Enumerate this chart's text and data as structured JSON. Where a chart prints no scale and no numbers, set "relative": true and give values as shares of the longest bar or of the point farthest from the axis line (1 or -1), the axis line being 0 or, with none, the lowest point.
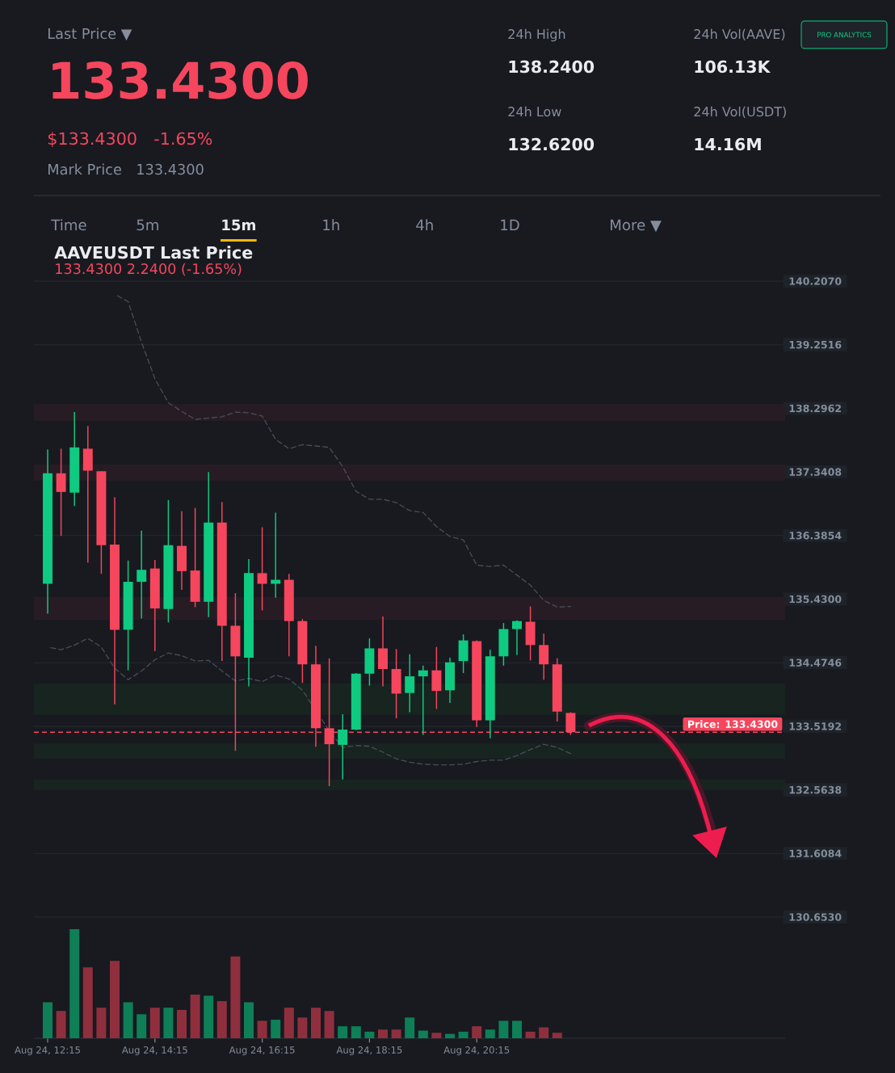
{
  "chart_data": [
    {
      "type": "other",
      "annotations": [
        "Last Price ▼",
        "133.4300",
        "$133.4300",
        "-1.65%",
        "Mark Price",
        "133.4300",
        "24h High",
        "138.2400",
        "24h Low",
        "132.6200",
        "24h Vol(AAVE)",
        "106.13K",
        "24h Vol(USDT)",
        "14.16M",
        "PRO ANALYTICS",
        "Time",
        "5m",
        "15m",
        "1h",
        "4h",
        "1D",
        "More ▼"
      ]
    },
    {
      "type": "candlestick",
      "title": "AAVEUSDT Last Price",
      "subtitle": "133.4300 2.2400 (-1.65%)",
      "categories": [
        null,
        null,
        null,
        null,
        null,
        null,
        null,
        null,
        null,
        null,
        null,
        null,
        null,
        null,
        null,
        null,
        null,
        null,
        null,
        null,
        null,
        null,
        null,
        null,
        null,
        null,
        null,
        null,
        null,
        null,
        null,
        null,
        null,
        null,
        null,
        null,
        null,
        null,
        null,
        null
      ],
      "ohlc": [
        [
          135.66,
          137.68,
          135.21,
          137.32
        ],
        [
          137.32,
          137.69,
          136.38,
          137.04
        ],
        [
          137.03,
          138.24,
          136.83,
          137.71
        ],
        [
          137.69,
          138.03,
          135.98,
          137.36
        ],
        [
          137.35,
          137.35,
          135.81,
          136.24
        ],
        [
          136.25,
          136.96,
          133.85,
          134.97
        ],
        [
          134.97,
          136.01,
          134.36,
          135.69
        ],
        [
          135.69,
          136.46,
          135.14,
          135.87
        ],
        [
          135.89,
          136.02,
          134.65,
          135.29
        ],
        [
          135.28,
          136.92,
          135.08,
          136.24
        ],
        [
          136.23,
          136.75,
          135.57,
          135.85
        ],
        [
          135.86,
          136.8,
          135.31,
          135.39
        ],
        [
          135.39,
          137.34,
          135.16,
          136.58
        ],
        [
          136.58,
          136.89,
          134.5,
          135.03
        ],
        [
          135.03,
          135.52,
          133.15,
          134.57
        ],
        [
          134.55,
          136.03,
          134.12,
          135.82
        ],
        [
          135.82,
          136.51,
          135.26,
          135.66
        ],
        [
          135.66,
          136.73,
          135.45,
          135.72
        ],
        [
          135.72,
          135.81,
          134.57,
          135.1
        ],
        [
          135.1,
          135.13,
          134.17,
          134.45
        ],
        [
          134.45,
          134.73,
          133.21,
          133.49
        ],
        [
          133.49,
          134.54,
          132.62,
          133.25
        ],
        [
          133.24,
          133.7,
          132.72,
          133.47
        ],
        [
          133.47,
          134.32,
          133.46,
          134.31
        ],
        [
          134.31,
          134.84,
          134.13,
          134.69
        ],
        [
          134.69,
          135.17,
          134.12,
          134.38
        ],
        [
          134.38,
          134.68,
          133.64,
          134.01
        ],
        [
          134.02,
          134.6,
          133.73,
          134.27
        ],
        [
          134.27,
          134.43,
          133.39,
          134.36
        ],
        [
          134.36,
          134.71,
          133.78,
          134.05
        ],
        [
          134.06,
          134.55,
          133.87,
          134.48
        ],
        [
          134.5,
          134.9,
          134.32,
          134.81
        ],
        [
          134.8,
          134.81,
          133.51,
          133.61
        ],
        [
          133.61,
          134.67,
          133.34,
          134.57
        ],
        [
          134.57,
          135.07,
          134.43,
          134.98
        ],
        [
          134.98,
          135.11,
          134.59,
          135.1
        ],
        [
          135.09,
          135.32,
          134.51,
          134.74
        ],
        [
          134.74,
          134.91,
          134.22,
          134.45
        ],
        [
          134.45,
          134.54,
          133.59,
          133.74
        ],
        [
          133.72,
          133.73,
          133.39,
          133.43
        ]
      ],
      "colors": [
        "#0ecb81",
        "#f6465d",
        "#0ecb81",
        "#f6465d",
        "#f6465d",
        "#f6465d",
        "#0ecb81",
        "#0ecb81",
        "#f6465d",
        "#0ecb81",
        "#f6465d",
        "#f6465d",
        "#0ecb81",
        "#f6465d",
        "#f6465d",
        "#0ecb81",
        "#f6465d",
        "#0ecb81",
        "#f6465d",
        "#f6465d",
        "#f6465d",
        "#f6465d",
        "#0ecb81",
        "#0ecb81",
        "#0ecb81",
        "#f6465d",
        "#f6465d",
        "#0ecb81",
        "#0ecb81",
        "#f6465d",
        "#0ecb81",
        "#0ecb81",
        "#f6465d",
        "#0ecb81",
        "#0ecb81",
        "#0ecb81",
        "#f6465d",
        "#f6465d",
        "#f6465d",
        "#f6465d"
      ],
      "series": [
        {
          "type": "line",
          "color": "#474d57",
          "line_style": "dashed",
          "values": [
            null,
            null,
            null,
            null,
            null,
            140.01,
            139.9,
            139.29,
            138.74,
            138.38,
            138.25,
            138.13,
            138.15,
            138.17,
            138.24,
            138.23,
            138.18,
            137.83,
            137.69,
            137.75,
            137.73,
            137.71,
            137.42,
            137.05,
            136.93,
            136.93,
            136.88,
            136.76,
            136.73,
            136.52,
            136.37,
            136.32,
            135.94,
            135.92,
            135.94,
            135.79,
            135.64,
            135.41,
            135.31,
            135.32
          ]
        },
        {
          "type": "line",
          "color": "#474d57",
          "line_style": "dashed",
          "values": [
            134.71,
            134.67,
            134.74,
            134.84,
            134.71,
            134.39,
            134.22,
            134.35,
            134.52,
            134.62,
            134.58,
            134.5,
            134.51,
            134.35,
            134.2,
            134.24,
            134.19,
            134.29,
            134.23,
            134.06,
            null,
            133.45,
            133.2,
            133.23,
            133.22,
            133.13,
            133.03,
            132.98,
            132.95,
            132.94,
            132.94,
            132.95,
            132.99,
            133.01,
            133.01,
            133.08,
            133.17,
            133.25,
            133.2,
            133.11
          ]
        }
      ],
      "ylim": [
        130.653,
        140.207
      ],
      "yticks": [
        {
          "value": 140.207,
          "label": "140.2070"
        },
        {
          "value": 139.2516,
          "label": "139.2516"
        },
        {
          "value": 138.2962,
          "label": "138.2962"
        },
        {
          "value": 137.3408,
          "label": "137.3408"
        },
        {
          "value": 136.3854,
          "label": "136.3854"
        },
        {
          "value": 135.43,
          "label": "135.4300"
        },
        {
          "value": 134.4746,
          "label": "134.4746"
        },
        {
          "value": 133.5192,
          "label": "133.5192"
        },
        {
          "value": 132.5638,
          "label": "132.5638"
        },
        {
          "value": 131.6084,
          "label": "131.6084"
        },
        {
          "value": 130.653,
          "label": "130.6530"
        }
      ],
      "grid": "y",
      "tick_labels": "y",
      "ref_lines": [
        {
          "axis": "y",
          "value": 133.43,
          "label": "Price: 133.4300",
          "color": "#f6465d",
          "line_style": "dashed"
        }
      ],
      "bands": [
        {
          "axis": "y",
          "from": 138.11,
          "to": 138.36,
          "color": "#281c24"
        },
        {
          "axis": "y",
          "from": 137.21,
          "to": 137.45,
          "color": "#281c24"
        },
        {
          "axis": "y",
          "from": 135.12,
          "to": 135.46,
          "color": "#281c24"
        },
        {
          "axis": "y",
          "from": 133.69,
          "to": 134.16,
          "color": "#172420"
        },
        {
          "axis": "y",
          "from": 133.03,
          "to": 133.26,
          "color": "#172420"
        },
        {
          "axis": "y",
          "from": 132.56,
          "to": 132.72,
          "color": "#172420"
        }
      ]
    },
    {
      "type": "bar",
      "categories": [
        "Aug 24, 12:15",
        null,
        null,
        null,
        null,
        null,
        null,
        null,
        "Aug 24, 14:15",
        null,
        null,
        null,
        null,
        null,
        null,
        null,
        "Aug 24, 16:15",
        null,
        null,
        null,
        null,
        null,
        null,
        null,
        "Aug 24, 18:15",
        null,
        null,
        null,
        null,
        null,
        null,
        null,
        "Aug 24, 20:15",
        null,
        null,
        null,
        null,
        null,
        null,
        null
      ],
      "values": [
        0.33,
        0.25,
        1,
        0.65,
        0.28,
        0.71,
        0.33,
        0.22,
        0.28,
        0.28,
        0.26,
        0.4,
        0.39,
        0.34,
        0.75,
        0.33,
        0.16,
        0.17,
        0.28,
        0.19,
        0.28,
        0.25,
        0.11,
        0.11,
        0.06,
        0.08,
        0.08,
        0.19,
        0.07,
        0.05,
        0.04,
        0.06,
        0.11,
        0.08,
        0.16,
        0.16,
        0.06,
        0.1,
        0.05,
        null
      ],
      "colors": [
        "#0e7f57",
        "#8f2f3e",
        "#0e7f57",
        "#8f2f3e",
        "#8f2f3e",
        "#8f2f3e",
        "#0e7f57",
        "#0e7f57",
        "#8f2f3e",
        "#0e7f57",
        "#8f2f3e",
        "#8f2f3e",
        "#0e7f57",
        "#8f2f3e",
        "#8f2f3e",
        "#0e7f57",
        "#8f2f3e",
        "#0e7f57",
        "#8f2f3e",
        "#8f2f3e",
        "#8f2f3e",
        "#8f2f3e",
        "#0e7f57",
        "#0e7f57",
        "#0e7f57",
        "#8f2f3e",
        "#8f2f3e",
        "#0e7f57",
        "#0e7f57",
        "#8f2f3e",
        "#0e7f57",
        "#0e7f57",
        "#8f2f3e",
        "#0e7f57",
        "#0e7f57",
        "#0e7f57",
        "#8f2f3e",
        "#8f2f3e",
        "#8f2f3e",
        "#8f2f3e"
      ],
      "relative": true,
      "tick_labels": "x"
    }
  ]
}
